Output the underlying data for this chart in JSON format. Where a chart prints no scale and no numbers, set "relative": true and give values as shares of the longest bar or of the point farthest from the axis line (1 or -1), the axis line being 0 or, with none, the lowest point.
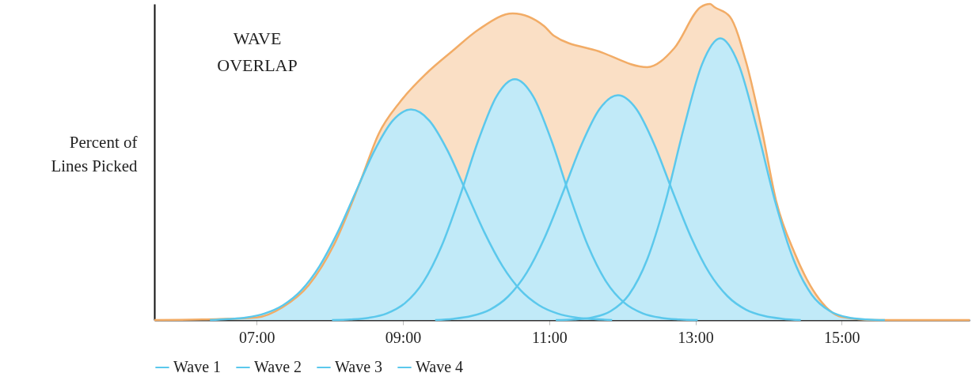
{
  "chart_data": {
    "type": "area",
    "title": "WAVE OVERLAP",
    "ylabel": "Percent of Lines Picked",
    "relative": true,
    "legend": "bottom",
    "xlim": [
      5.6,
      16.75
    ],
    "xticks": [
      {
        "value": 7,
        "label": "07:00"
      },
      {
        "value": 9,
        "label": "09:00"
      },
      {
        "value": 11,
        "label": "11:00"
      },
      {
        "value": 13,
        "label": "13:00"
      },
      {
        "value": 15,
        "label": "15:00"
      }
    ],
    "series": [
      {
        "color": "#f2ac66",
        "x": [
          5.6,
          6.5,
          7.0,
          7.35,
          7.71,
          8.06,
          8.42,
          8.67,
          8.96,
          9.32,
          9.67,
          10.04,
          10.5,
          10.93,
          11.06,
          11.68,
          12.34,
          12.71,
          13.07,
          13.2,
          13.26,
          13.47,
          13.7,
          13.91,
          14.1,
          14.36,
          14.65,
          15.0,
          15.46,
          16.75
        ],
        "values": [
          0,
          0.003,
          0.008,
          0.04,
          0.11,
          0.24,
          0.44,
          0.59,
          0.69,
          0.78,
          0.85,
          0.92,
          0.97,
          0.93,
          0.9,
          0.85,
          0.8,
          0.86,
          0.99,
          1,
          0.99,
          0.96,
          0.81,
          0.6,
          0.38,
          0.21,
          0.08,
          0.01,
          0,
          0
        ]
      },
      {
        "name": "Wave 1",
        "color": "#5bc8ec",
        "x": [
          6.36,
          6.61,
          6.86,
          7.11,
          7.36,
          7.61,
          7.86,
          8.11,
          8.36,
          8.61,
          8.86,
          9.11,
          9.36,
          9.61,
          9.86,
          10.11,
          10.36,
          10.61,
          10.86,
          11.11,
          11.36,
          11.61,
          11.86
        ],
        "values": [
          0,
          0.003,
          0.008,
          0.021,
          0.047,
          0.094,
          0.171,
          0.279,
          0.408,
          0.536,
          0.631,
          0.666,
          0.631,
          0.536,
          0.408,
          0.279,
          0.171,
          0.094,
          0.047,
          0.021,
          0.008,
          0.003,
          0
        ]
      },
      {
        "name": "Wave 2",
        "color": "#5bc8ec",
        "x": [
          8.03,
          8.28,
          8.53,
          8.78,
          9.03,
          9.28,
          9.53,
          9.78,
          10.03,
          10.28,
          10.53,
          10.78,
          11.03,
          11.28,
          11.53,
          11.78,
          12.03,
          12.28,
          12.53,
          12.78,
          13.03
        ],
        "values": [
          0,
          0.002,
          0.007,
          0.021,
          0.054,
          0.121,
          0.235,
          0.393,
          0.568,
          0.708,
          0.762,
          0.708,
          0.568,
          0.393,
          0.235,
          0.121,
          0.054,
          0.021,
          0.007,
          0.002,
          0
        ]
      },
      {
        "name": "Wave 3",
        "color": "#5bc8ec",
        "x": [
          9.44,
          9.69,
          9.94,
          10.19,
          10.44,
          10.69,
          10.94,
          11.19,
          11.44,
          11.69,
          11.94,
          12.19,
          12.44,
          12.69,
          12.94,
          13.19,
          13.44,
          13.69,
          13.94,
          14.19,
          14.44
        ],
        "values": [
          0,
          0.004,
          0.013,
          0.033,
          0.075,
          0.149,
          0.262,
          0.405,
          0.554,
          0.668,
          0.711,
          0.668,
          0.554,
          0.405,
          0.262,
          0.149,
          0.075,
          0.033,
          0.013,
          0.004,
          0
        ]
      },
      {
        "name": "Wave 4",
        "color": "#5bc8ec",
        "x": [
          11.09,
          11.34,
          11.59,
          11.84,
          12.09,
          12.34,
          12.59,
          12.84,
          13.09,
          13.34,
          13.59,
          13.84,
          14.09,
          14.34,
          14.59,
          14.84,
          15.09,
          15.34,
          15.59
        ],
        "values": [
          0,
          0.002,
          0.008,
          0.028,
          0.08,
          0.192,
          0.375,
          0.607,
          0.809,
          0.891,
          0.809,
          0.607,
          0.375,
          0.192,
          0.08,
          0.028,
          0.008,
          0.002,
          0
        ]
      }
    ]
  }
}
